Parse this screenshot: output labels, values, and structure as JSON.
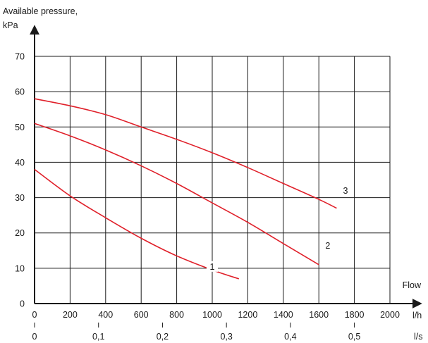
{
  "chart_data": {
    "type": "line",
    "title": "",
    "ylabel_lines": [
      "Available pressure,",
      "kPa"
    ],
    "xlabel": "Flow",
    "x_unit_primary": "l/h",
    "x_unit_secondary": "l/s",
    "xlim": [
      0,
      2000
    ],
    "ylim": [
      0,
      70
    ],
    "x_ticks": [
      "0",
      "200",
      "400",
      "600",
      "800",
      "1000",
      "1200",
      "1400",
      "1600",
      "1800",
      "2000"
    ],
    "y_ticks": [
      "0",
      "10",
      "20",
      "30",
      "40",
      "50",
      "60",
      "70"
    ],
    "secondary_ticks": [
      {
        "x": 0,
        "label": "0"
      },
      {
        "x": 0.1,
        "label": "0,1"
      },
      {
        "x": 0.2,
        "label": "0,2"
      },
      {
        "x": 0.3,
        "label": "0,3"
      },
      {
        "x": 0.4,
        "label": "0,4"
      },
      {
        "x": 0.5,
        "label": "0,5"
      }
    ],
    "grid": true,
    "line_color": "#e0202a",
    "series": [
      {
        "name": "1",
        "x": [
          0,
          200,
          400,
          600,
          800,
          1000,
          1150
        ],
        "y": [
          38,
          30.5,
          24.3,
          18.5,
          13.5,
          9.5,
          7
        ],
        "label_at": [
          1000,
          10
        ]
      },
      {
        "name": "2",
        "x": [
          0,
          200,
          400,
          600,
          800,
          1000,
          1200,
          1400,
          1600
        ],
        "y": [
          51,
          47.5,
          43.5,
          39,
          34,
          28.5,
          23,
          17,
          11
        ],
        "label_at": [
          1650,
          16
        ]
      },
      {
        "name": "3",
        "x": [
          0,
          200,
          400,
          600,
          800,
          1000,
          1200,
          1400,
          1600,
          1700
        ],
        "y": [
          58,
          56,
          53.5,
          50,
          46.5,
          42.7,
          38.5,
          34,
          29.5,
          27
        ],
        "label_at": [
          1750,
          31.5
        ]
      }
    ]
  }
}
